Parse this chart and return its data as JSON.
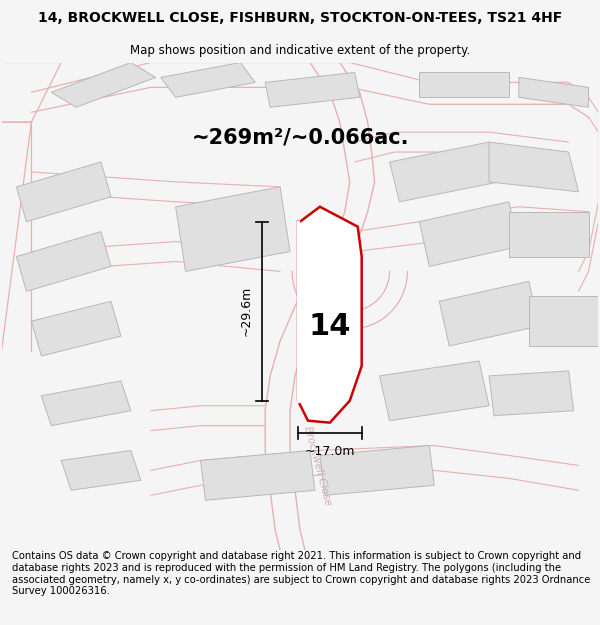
{
  "title_line1": "14, BROCKWELL CLOSE, FISHBURN, STOCKTON-ON-TEES, TS21 4HF",
  "title_line2": "Map shows position and indicative extent of the property.",
  "area_text": "~269m²/~0.066ac.",
  "label_number": "14",
  "dim_width": "~17.0m",
  "dim_height": "~29.6m",
  "footer_text": "Contains OS data © Crown copyright and database right 2021. This information is subject to Crown copyright and database rights 2023 and is reproduced with the permission of HM Land Registry. The polygons (including the associated geometry, namely x, y co-ordinates) are subject to Crown copyright and database rights 2023 Ordnance Survey 100026316.",
  "bg_color": "#f5f5f5",
  "map_bg": "#ffffff",
  "plot_fill": "#f0eeee",
  "plot_edge": "#cc0000",
  "road_color": "#f0a0a0",
  "building_fill": "#e0e0e0",
  "building_edge": "#b8b8b8",
  "road_outline": "#e8b0b0",
  "street_label": "Brockwell Close",
  "title_fontsize": 10,
  "subtitle_fontsize": 8.5,
  "footer_fontsize": 7.2
}
